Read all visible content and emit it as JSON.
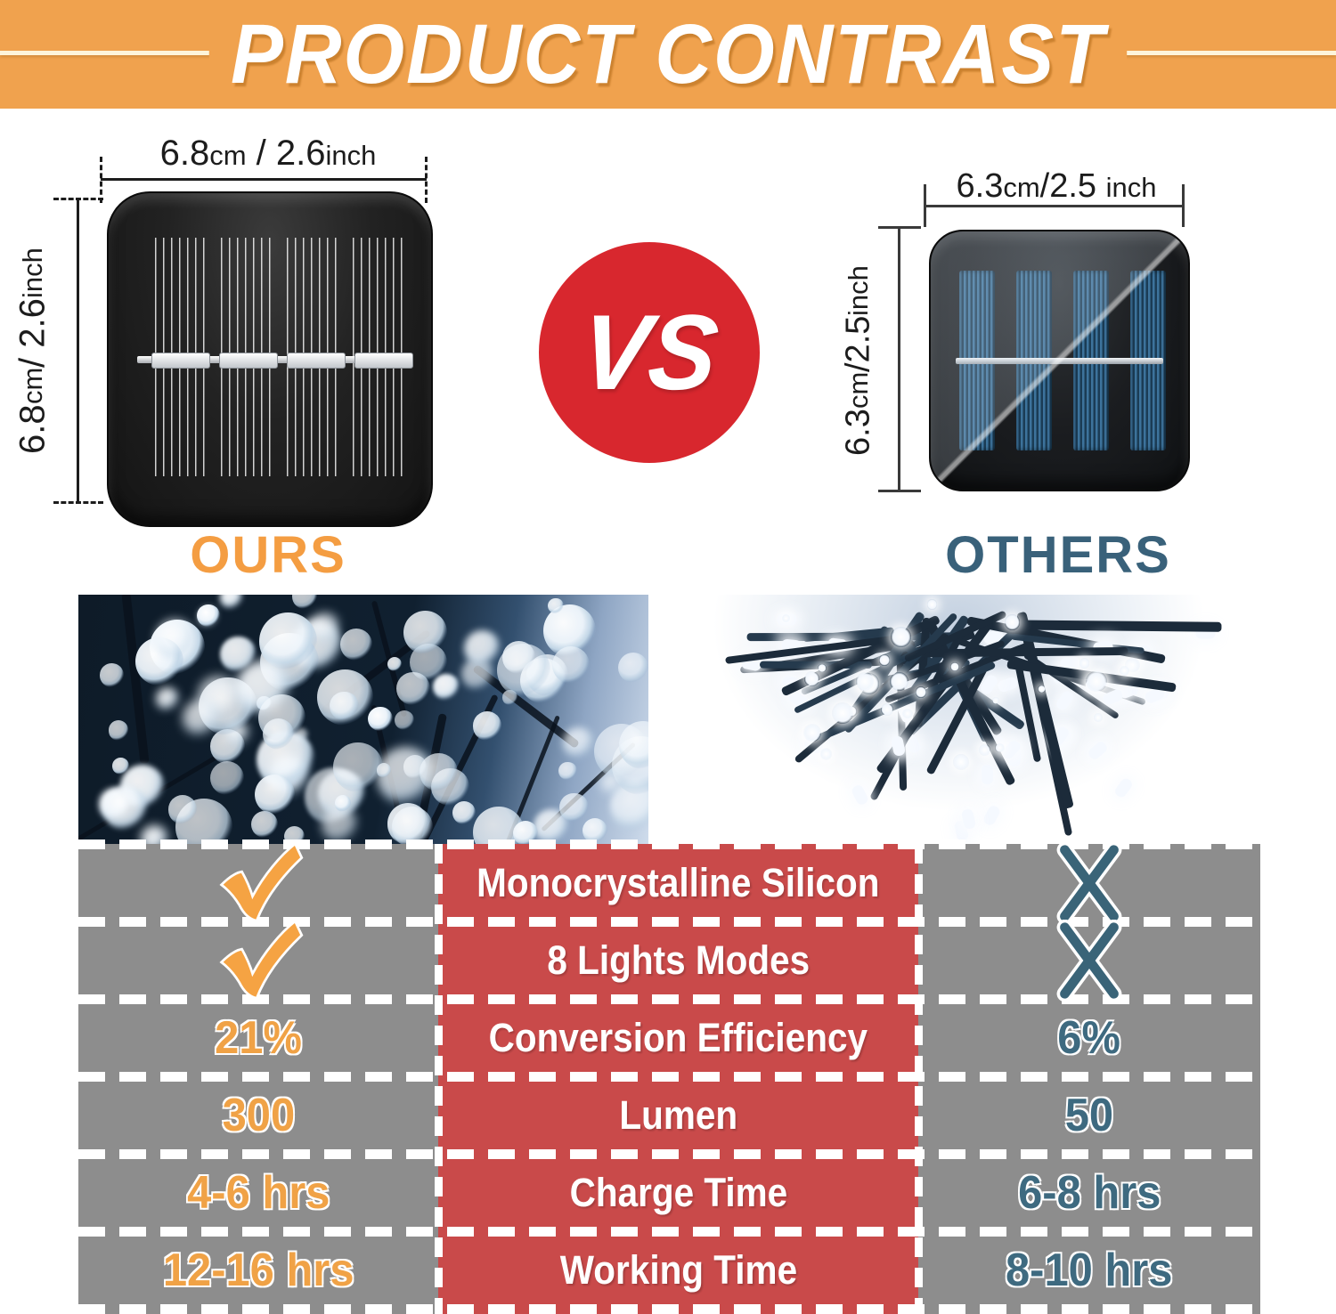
{
  "title": "PRODUCT CONTRAST",
  "vs_label": "VS",
  "ours": {
    "label": "OURS",
    "panel_width_label": "6.8cm / 2.6inch",
    "panel_height_label": "6.8cm / 2.6inch"
  },
  "others": {
    "label": "OTHERS",
    "panel_width_label": "6.3cm/2.5 inch",
    "panel_height_label": "6.3cm/2.5 inch"
  },
  "comparison_table": {
    "columns": [
      "ours",
      "feature",
      "others"
    ],
    "rows": [
      {
        "ours": "check",
        "feature": "Monocrystalline Silicon",
        "others": "cross"
      },
      {
        "ours": "check",
        "feature": "8 Lights Modes",
        "others": "cross"
      },
      {
        "ours": "21%",
        "feature": "Conversion Efficiency",
        "others": "6%"
      },
      {
        "ours": "300",
        "feature": "Lumen",
        "others": "50"
      },
      {
        "ours": "4-6 hrs",
        "feature": "Charge Time",
        "others": "6-8 hrs"
      },
      {
        "ours": "12-16 hrs",
        "feature": "Working Time",
        "others": "8-10 hrs"
      }
    ]
  },
  "icons": {
    "check": "check-icon",
    "cross": "cross-icon"
  },
  "colors": {
    "banner_orange": "#F0A24E",
    "vs_red": "#D8272E",
    "table_red": "#C94A4A",
    "table_gray": "#8D8D8D",
    "ours_accent": "#F49D42",
    "others_accent": "#39617A"
  }
}
